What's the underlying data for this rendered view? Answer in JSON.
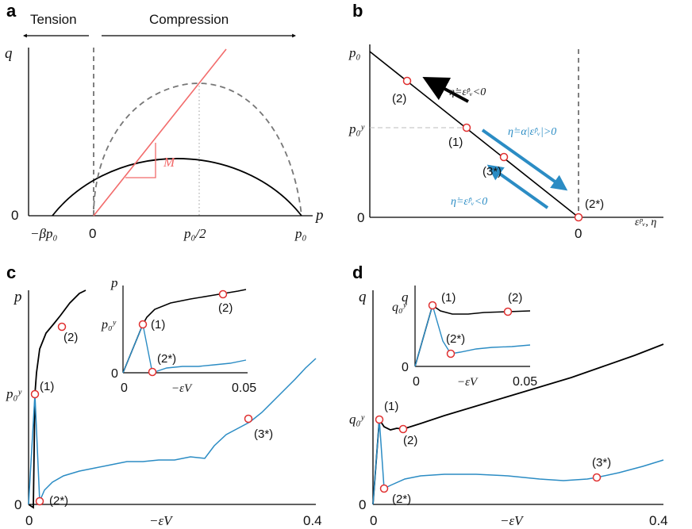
{
  "chart_data": [
    {
      "panel": "a",
      "type": "line",
      "xlabel": "p",
      "ylabel": "q",
      "header_left": "Tension",
      "header_right": "Compression",
      "xticks": [
        "−βp₀",
        "0",
        "p₀/2",
        "p₀"
      ],
      "yticks": [
        "0"
      ],
      "slope_label": "M",
      "colors": {
        "ellipse": "#000000",
        "ellipse_origin": "#7a7a7a",
        "csl": "#f26b6b"
      },
      "series": [
        {
          "style": "solid",
          "color": "#000000",
          "x": [
            -0.25,
            0.0,
            0.25,
            0.5,
            0.75,
            1.0
          ],
          "y": [
            0.0,
            0.7,
            0.93,
            0.95,
            0.8,
            0.0
          ]
        },
        {
          "style": "dashed",
          "color": "#7a7a7a",
          "x": [
            0.0,
            0.1,
            0.25,
            0.45,
            0.75,
            1.0
          ],
          "y": [
            0.0,
            0.55,
            0.82,
            0.95,
            0.83,
            0.0
          ]
        },
        {
          "style": "solid",
          "color": "#f26b6b",
          "x": [
            0.0,
            0.65
          ],
          "y": [
            0.0,
            1.2
          ]
        }
      ]
    },
    {
      "panel": "b",
      "type": "line",
      "xlabel": "εᵖᵥ, η",
      "ylabel": "",
      "ytick_labels": [
        "p₀",
        "p₀ʸ",
        "0"
      ],
      "xtick_labels": [
        "0"
      ],
      "points": [
        "(1)",
        "(2)",
        "(3*)",
        "(2*)"
      ],
      "annotations": [
        "η̇=ε̇ᵖᵥ<0",
        "η̇=α|ε̇ᵖᵥ|>0",
        "η̇=ε̇ᵖᵥ<0"
      ],
      "colors": {
        "line": "#000000",
        "arrow_up": "#000000",
        "arrow_blue": "#2b8cc4",
        "marker": "#e03030"
      }
    },
    {
      "panel": "c",
      "type": "line",
      "xlabel": "−εV",
      "ylabel": "p",
      "xlim": [
        0,
        0.4
      ],
      "xticks": [
        "0",
        "0.4"
      ],
      "ytick_labels": [
        "p₀ʸ",
        "0"
      ],
      "points": [
        "(1)",
        "(2)",
        "(2*)",
        "(3*)"
      ],
      "colors": {
        "drained": "#000000",
        "undrained": "#2b8cc4",
        "marker": "#e03030"
      },
      "series": [
        {
          "name": "",
          "color": "#000000",
          "x": [
            0.002,
            0.006,
            0.015,
            0.03,
            0.05,
            0.07
          ],
          "y": [
            0.14,
            0.27,
            0.4,
            0.48,
            0.55,
            0.6
          ]
        },
        {
          "name": "",
          "color": "#2b8cc4",
          "x": [
            0.0,
            0.006,
            0.012,
            0.02,
            0.05,
            0.1,
            0.15,
            0.2,
            0.215,
            0.25,
            0.3,
            0.35,
            0.4
          ],
          "y": [
            0.0,
            0.14,
            0.0,
            0.03,
            0.07,
            0.09,
            0.095,
            0.095,
            0.1,
            0.16,
            0.19,
            0.25,
            0.32
          ]
        }
      ],
      "inset": {
        "xlabel": "−εV",
        "ylabel": "p",
        "xlim": [
          0,
          0.05
        ],
        "xticks": [
          "0",
          "0.05"
        ],
        "ytick_labels": [
          "p₀ʸ",
          "0"
        ],
        "points": [
          "(1)",
          "(2)",
          "(2*)"
        ]
      }
    },
    {
      "panel": "d",
      "type": "line",
      "xlabel": "−εV",
      "ylabel": "q",
      "xlim": [
        0,
        0.4
      ],
      "xticks": [
        "0",
        "0.4"
      ],
      "ytick_labels": [
        "q₀ʸ",
        "0"
      ],
      "points": [
        "(1)",
        "(2)",
        "(2*)",
        "(3*)"
      ],
      "colors": {
        "drained": "#000000",
        "undrained": "#2b8cc4",
        "marker": "#e03030"
      },
      "series": [
        {
          "name": "",
          "color": "#000000",
          "x": [
            0.0,
            0.007,
            0.015,
            0.04,
            0.1,
            0.2,
            0.3,
            0.4
          ],
          "y": [
            0.0,
            0.23,
            0.2,
            0.2,
            0.24,
            0.32,
            0.4,
            0.48
          ]
        },
        {
          "name": "",
          "color": "#2b8cc4",
          "x": [
            0.0,
            0.007,
            0.012,
            0.02,
            0.05,
            0.1,
            0.2,
            0.25,
            0.31,
            0.4
          ],
          "y": [
            0.0,
            0.23,
            0.05,
            0.06,
            0.09,
            0.1,
            0.09,
            0.08,
            0.08,
            0.13
          ]
        }
      ],
      "inset": {
        "xlabel": "−εV",
        "ylabel": "q",
        "xlim": [
          0,
          0.05
        ],
        "xticks": [
          "0",
          "0.05"
        ],
        "ytick_labels": [
          "q₀ʸ",
          "0"
        ],
        "points": [
          "(1)",
          "(2)",
          "(2*)"
        ]
      }
    }
  ]
}
